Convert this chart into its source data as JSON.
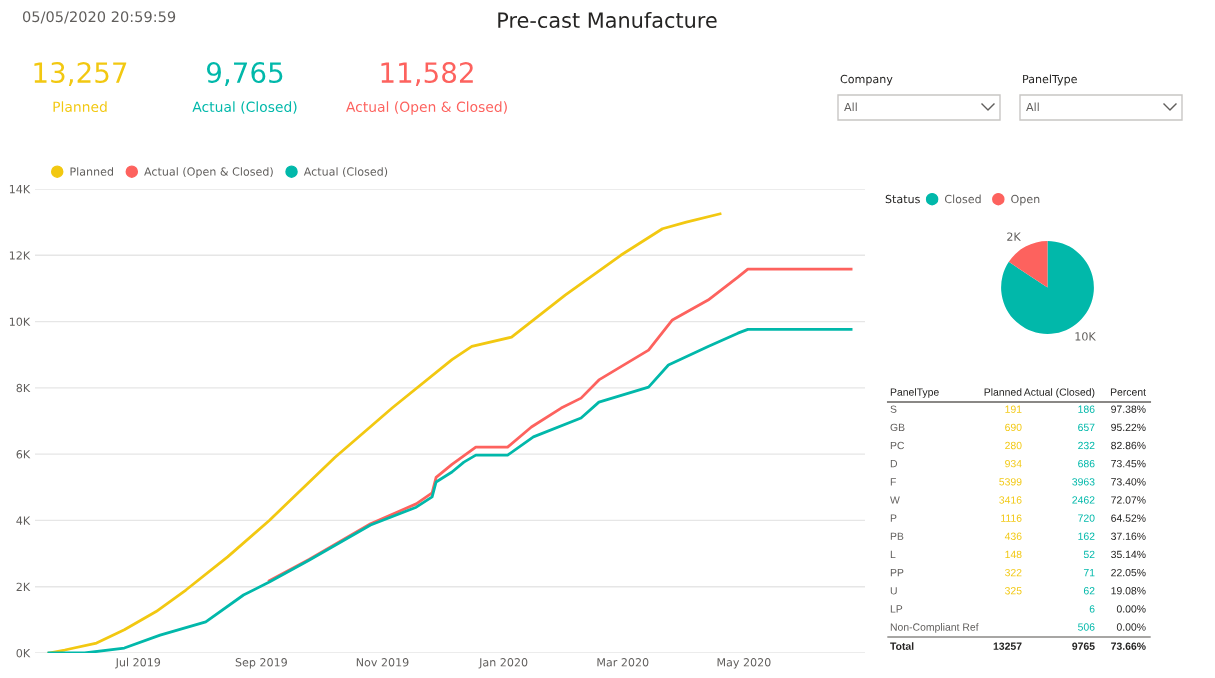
{
  "chart_data": [
    {
      "type": "other",
      "title": "Pre-cast Manufacture",
      "annotations": [
        "05/05/2020 20:59:59",
        "Company",
        "All",
        "PanelType",
        "All"
      ]
    },
    {
      "type": "other",
      "categories": [
        "Planned",
        "Actual (Closed)",
        "Actual (Open & Closed)"
      ],
      "value_labels": [
        "13,257",
        "9,765",
        "11,582"
      ],
      "colors": [
        "#f2c811",
        "#01b8aa",
        "#fd625e"
      ]
    },
    {
      "type": "line",
      "legend": "top left",
      "grid": "y",
      "marker": "none",
      "line_style": "solid",
      "xlim": [
        "2019-05-10",
        "2020-07-01"
      ],
      "ylim": [
        0,
        14000
      ],
      "xticks": [
        {
          "value": "2019-07-01",
          "label": "Jul 2019"
        },
        {
          "value": "2019-09-01",
          "label": "Sep 2019"
        },
        {
          "value": "2019-11-01",
          "label": "Nov 2019"
        },
        {
          "value": "2020-01-01",
          "label": "Jan 2020"
        },
        {
          "value": "2020-03-01",
          "label": "Mar 2020"
        },
        {
          "value": "2020-05-01",
          "label": "May 2020"
        }
      ],
      "yticks": [
        {
          "value": 0,
          "label": "0K"
        },
        {
          "value": 2000,
          "label": "2K"
        },
        {
          "value": 4000,
          "label": "4K"
        },
        {
          "value": 6000,
          "label": "6K"
        },
        {
          "value": 8000,
          "label": "8K"
        },
        {
          "value": 10000,
          "label": "10K"
        },
        {
          "value": 12000,
          "label": "12K"
        },
        {
          "value": 14000,
          "label": "14K"
        }
      ],
      "series": [
        {
          "name": "Planned",
          "color": "#f2c811",
          "x": [
            "2019-05-17",
            "2019-05-25",
            "2019-06-10",
            "2019-06-24",
            "2019-07-10",
            "2019-07-25",
            "2019-08-15",
            "2019-09-05",
            "2019-10-08",
            "2019-11-06",
            "2019-12-06",
            "2019-12-16",
            "2020-01-05",
            "2020-02-01",
            "2020-02-29",
            "2020-03-21",
            "2020-04-02",
            "2020-04-19"
          ],
          "values": [
            0,
            90,
            300,
            700,
            1250,
            1900,
            2900,
            4000,
            5900,
            7400,
            8850,
            9250,
            9530,
            10800,
            12000,
            12800,
            13000,
            13250
          ]
        },
        {
          "name": "Actual (Open & Closed)",
          "color": "#fd625e",
          "x": [
            "2019-09-05",
            "2019-09-25",
            "2019-10-26",
            "2019-11-18",
            "2019-11-26",
            "2019-11-28",
            "2019-12-06",
            "2019-12-18",
            "2020-01-03",
            "2020-01-15",
            "2020-01-30",
            "2020-02-09",
            "2020-02-18",
            "2020-03-14",
            "2020-03-26",
            "2020-04-13",
            "2020-04-28",
            "2020-05-03",
            "2020-06-24"
          ],
          "values": [
            2180,
            2820,
            3900,
            4500,
            4830,
            5300,
            5690,
            6210,
            6210,
            6820,
            7390,
            7690,
            8240,
            9140,
            10050,
            10650,
            11340,
            11582,
            11582
          ]
        },
        {
          "name": "Actual (Closed)",
          "color": "#01b8aa",
          "x": [
            "2019-05-17",
            "2019-06-04",
            "2019-06-24",
            "2019-07-12",
            "2019-08-04",
            "2019-08-23",
            "2019-09-05",
            "2019-09-25",
            "2019-10-26",
            "2019-11-18",
            "2019-11-26",
            "2019-11-28",
            "2019-12-06",
            "2019-12-12",
            "2019-12-18",
            "2020-01-03",
            "2020-01-16",
            "2020-02-09",
            "2020-02-18",
            "2020-03-14",
            "2020-03-24",
            "2020-04-13",
            "2020-04-28",
            "2020-05-03",
            "2020-06-24"
          ],
          "values": [
            0,
            0,
            150,
            540,
            940,
            1750,
            2140,
            2800,
            3860,
            4400,
            4710,
            5160,
            5460,
            5760,
            5970,
            5970,
            6520,
            7090,
            7570,
            8020,
            8690,
            9250,
            9650,
            9765,
            9765
          ]
        }
      ]
    },
    {
      "type": "pie",
      "legend_title": "Status",
      "legend": "top left",
      "categories": [
        "Closed",
        "Open"
      ],
      "values": [
        9765,
        1817
      ],
      "value_labels": [
        "10K",
        "2K"
      ],
      "colors": [
        "#01b8aa",
        "#fd625e"
      ]
    },
    {
      "type": "other",
      "data_labels": true,
      "annotations": [
        "PanelType"
      ],
      "categories": [
        "S",
        "GB",
        "PC",
        "D",
        "F",
        "W",
        "P",
        "PB",
        "L",
        "PP",
        "U",
        "LP",
        "Non-Compliant Ref",
        "Total"
      ],
      "series": [
        {
          "name": "Planned",
          "colors": [
            "#f2c811",
            "#f2c811",
            "#f2c811",
            "#f2c811",
            "#f2c811",
            "#f2c811",
            "#f2c811",
            "#f2c811",
            "#f2c811",
            "#f2c811",
            "#f2c811",
            "#f2c811",
            "#f2c811",
            "#252423"
          ],
          "values": [
            191,
            690,
            280,
            934,
            5399,
            3416,
            1116,
            436,
            148,
            322,
            325,
            null,
            null,
            13257
          ]
        },
        {
          "name": "Actual (Closed)",
          "colors": [
            "#01b8aa",
            "#01b8aa",
            "#01b8aa",
            "#01b8aa",
            "#01b8aa",
            "#01b8aa",
            "#01b8aa",
            "#01b8aa",
            "#01b8aa",
            "#01b8aa",
            "#01b8aa",
            "#01b8aa",
            "#01b8aa",
            "#252423"
          ],
          "values": [
            186,
            657,
            232,
            686,
            3963,
            2462,
            720,
            162,
            52,
            71,
            62,
            6,
            506,
            9765
          ]
        },
        {
          "name": "Percent",
          "color": "#252423",
          "values": [
            97.38,
            95.22,
            82.86,
            73.45,
            73.4,
            72.07,
            64.52,
            37.16,
            35.14,
            22.05,
            19.08,
            0.0,
            0.0,
            73.66
          ],
          "value_labels": [
            "97.38%",
            "95.22%",
            "82.86%",
            "73.45%",
            "73.40%",
            "72.07%",
            "64.52%",
            "37.16%",
            "35.14%",
            "22.05%",
            "19.08%",
            "0.00%",
            "0.00%",
            "73.66%"
          ]
        }
      ]
    }
  ]
}
